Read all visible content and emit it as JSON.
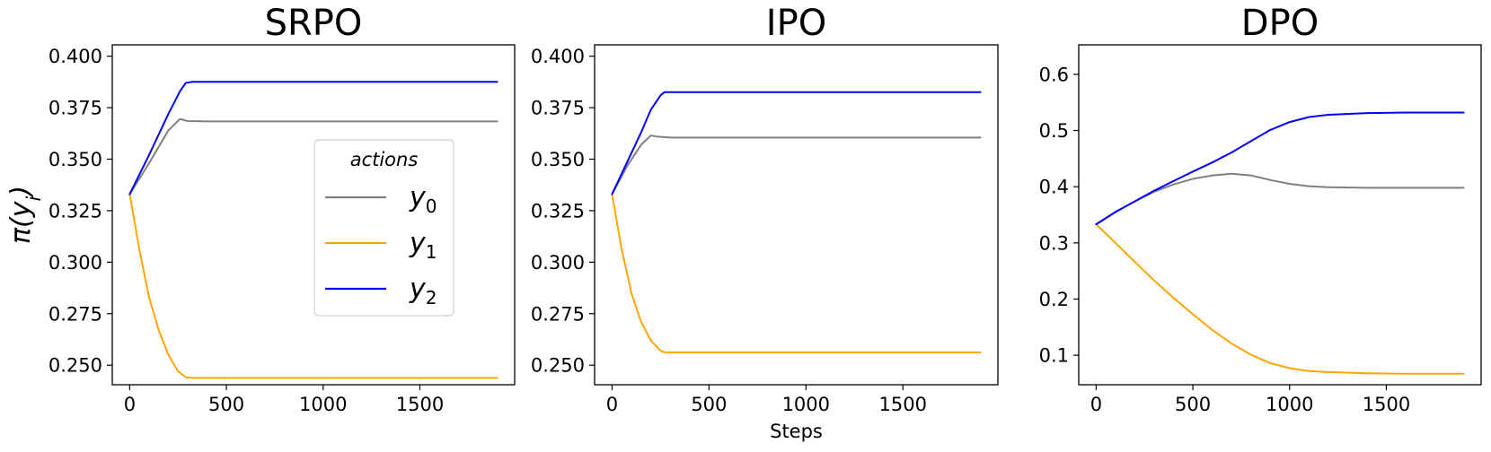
{
  "chart_data": [
    {
      "type": "line",
      "title": "SRPO",
      "xlabel": "",
      "ylabel": "π(y_i)",
      "xlim": [
        -90,
        1990
      ],
      "ylim": [
        0.2405,
        0.4055
      ],
      "xticks": [
        0,
        500,
        1000,
        1500
      ],
      "yticks": [
        0.25,
        0.275,
        0.3,
        0.325,
        0.35,
        0.375,
        0.4
      ],
      "ytick_labels": [
        "0.250",
        "0.275",
        "0.300",
        "0.325",
        "0.350",
        "0.375",
        "0.400"
      ],
      "legend": {
        "title": "actions",
        "placement": "center-right",
        "entries": [
          {
            "base": "y",
            "sub": "0",
            "color": "#808080"
          },
          {
            "base": "y",
            "sub": "1",
            "color": "#FFA500"
          },
          {
            "base": "y",
            "sub": "2",
            "color": "#0000FF"
          }
        ]
      },
      "series": [
        {
          "color": "#808080",
          "x": [
            0,
            100,
            200,
            260,
            300,
            400,
            600,
            1000,
            1500,
            1900
          ],
          "y": [
            0.333,
            0.348,
            0.364,
            0.3695,
            0.3685,
            0.3683,
            0.3683,
            0.3683,
            0.3683,
            0.3683
          ]
        },
        {
          "color": "#FFA500",
          "x": [
            0,
            50,
            100,
            150,
            200,
            250,
            290,
            320,
            400,
            1000,
            1500,
            1900
          ],
          "y": [
            0.333,
            0.306,
            0.283,
            0.267,
            0.255,
            0.247,
            0.2442,
            0.2438,
            0.2438,
            0.2438,
            0.2438,
            0.2438
          ]
        },
        {
          "color": "#0000FF",
          "x": [
            0,
            100,
            200,
            260,
            290,
            320,
            400,
            1000,
            1500,
            1900
          ],
          "y": [
            0.333,
            0.352,
            0.372,
            0.383,
            0.387,
            0.3875,
            0.3875,
            0.3875,
            0.3875,
            0.3875
          ]
        }
      ]
    },
    {
      "type": "line",
      "title": "IPO",
      "xlabel": "Steps",
      "ylabel": "",
      "xlim": [
        -90,
        1990
      ],
      "ylim": [
        0.2405,
        0.4055
      ],
      "xticks": [
        0,
        500,
        1000,
        1500
      ],
      "yticks": [
        0.25,
        0.275,
        0.3,
        0.325,
        0.35,
        0.375,
        0.4
      ],
      "ytick_labels": [
        "0.250",
        "0.275",
        "0.300",
        "0.325",
        "0.350",
        "0.375",
        "0.400"
      ],
      "series": [
        {
          "color": "#808080",
          "x": [
            0,
            80,
            150,
            200,
            230,
            300,
            500,
            1000,
            1500,
            1900
          ],
          "y": [
            0.333,
            0.347,
            0.357,
            0.3615,
            0.361,
            0.3605,
            0.3605,
            0.3605,
            0.3605,
            0.3605
          ]
        },
        {
          "color": "#FFA500",
          "x": [
            0,
            50,
            100,
            150,
            200,
            250,
            270,
            300,
            500,
            1000,
            1500,
            1900
          ],
          "y": [
            0.333,
            0.306,
            0.285,
            0.271,
            0.262,
            0.257,
            0.2562,
            0.2562,
            0.2562,
            0.2562,
            0.2562,
            0.2562
          ]
        },
        {
          "color": "#0000FF",
          "x": [
            0,
            80,
            150,
            200,
            250,
            270,
            300,
            500,
            1000,
            1500,
            1900
          ],
          "y": [
            0.333,
            0.349,
            0.363,
            0.374,
            0.381,
            0.3825,
            0.3825,
            0.3825,
            0.3825,
            0.3825,
            0.3825
          ]
        }
      ]
    },
    {
      "type": "line",
      "title": "DPO",
      "xlabel": "",
      "ylabel": "",
      "xlim": [
        -90,
        1990
      ],
      "ylim": [
        0.0475,
        0.6525
      ],
      "xticks": [
        0,
        500,
        1000,
        1500
      ],
      "yticks": [
        0.1,
        0.2,
        0.3,
        0.4,
        0.5,
        0.6
      ],
      "ytick_labels": [
        "0.1",
        "0.2",
        "0.3",
        "0.4",
        "0.5",
        "0.6"
      ],
      "series": [
        {
          "color": "#808080",
          "x": [
            0,
            100,
            200,
            300,
            400,
            500,
            600,
            700,
            800,
            900,
            1000,
            1100,
            1200,
            1400,
            1600,
            1900
          ],
          "y": [
            0.333,
            0.355,
            0.374,
            0.391,
            0.404,
            0.414,
            0.42,
            0.423,
            0.42,
            0.412,
            0.405,
            0.401,
            0.399,
            0.398,
            0.398,
            0.398
          ]
        },
        {
          "color": "#FFA500",
          "x": [
            0,
            100,
            200,
            300,
            400,
            500,
            600,
            700,
            800,
            900,
            1000,
            1100,
            1200,
            1400,
            1600,
            1900
          ],
          "y": [
            0.333,
            0.3,
            0.266,
            0.233,
            0.202,
            0.173,
            0.145,
            0.121,
            0.101,
            0.086,
            0.077,
            0.072,
            0.07,
            0.068,
            0.067,
            0.067
          ]
        },
        {
          "color": "#0000FF",
          "x": [
            0,
            100,
            200,
            300,
            400,
            500,
            600,
            700,
            800,
            900,
            1000,
            1100,
            1200,
            1400,
            1600,
            1900
          ],
          "y": [
            0.333,
            0.355,
            0.374,
            0.393,
            0.41,
            0.427,
            0.443,
            0.461,
            0.481,
            0.501,
            0.515,
            0.524,
            0.528,
            0.531,
            0.532,
            0.532
          ]
        }
      ]
    }
  ]
}
